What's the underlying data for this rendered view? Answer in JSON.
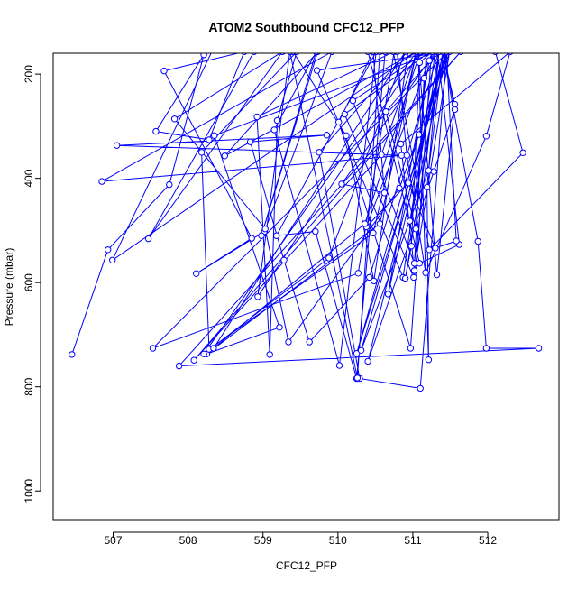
{
  "chart_data": {
    "type": "line",
    "title": "ATOM2 Southbound CFC12_PFP",
    "xlabel": "CFC12_PFP",
    "ylabel": "Pressure (mbar)",
    "xlim": [
      506.2,
      512.95
    ],
    "ylim": [
      1055,
      160
    ],
    "y_axis_inverted": true,
    "grid": false,
    "legend": "none",
    "x_ticks": [
      507,
      508,
      509,
      510,
      511,
      512
    ],
    "y_ticks": [
      200,
      400,
      600,
      800,
      1000
    ],
    "series": [
      {
        "color": "#0000FF",
        "marker": "open-circle",
        "points": [
          [
            506.45,
            738
          ],
          [
            506.93,
            537
          ],
          [
            507.75,
            412
          ],
          [
            508.21,
            163
          ],
          [
            507.57,
            310
          ],
          [
            508.28,
            326
          ],
          [
            508.75,
            157
          ],
          [
            507.68,
            194
          ],
          [
            508.85,
            515
          ],
          [
            508.11,
            583
          ],
          [
            509.02,
            502
          ],
          [
            509.92,
            157
          ],
          [
            506.85,
            406
          ],
          [
            510.85,
            356
          ],
          [
            507.05,
            337
          ],
          [
            509.85,
            317
          ],
          [
            508.83,
            330
          ],
          [
            509.28,
            557
          ],
          [
            509.62,
            714
          ],
          [
            510.42,
            590
          ],
          [
            511.35,
            155
          ],
          [
            508.35,
            318
          ],
          [
            509.22,
            686
          ],
          [
            508.25,
            737
          ],
          [
            510.56,
            487
          ],
          [
            511.05,
            157
          ],
          [
            506.99,
            557
          ],
          [
            508.32,
            156
          ],
          [
            508.88,
            157
          ],
          [
            507.47,
            516
          ],
          [
            509.26,
            157
          ],
          [
            507.82,
            286
          ],
          [
            509.03,
            497
          ],
          [
            509.34,
            714
          ],
          [
            510.82,
            419
          ],
          [
            511.48,
            155
          ],
          [
            507.53,
            726
          ],
          [
            510.27,
            582
          ],
          [
            510.75,
            157
          ],
          [
            508.92,
            282
          ],
          [
            509.09,
            738
          ],
          [
            509.19,
            289
          ],
          [
            509.45,
            157
          ],
          [
            508.18,
            350
          ],
          [
            508.28,
            728
          ],
          [
            510.47,
            505
          ],
          [
            511.05,
            157
          ],
          [
            508.49,
            357
          ],
          [
            509.73,
            157
          ],
          [
            508.98,
            510
          ],
          [
            509.71,
            157
          ],
          [
            509.15,
            307
          ],
          [
            510.02,
            759
          ],
          [
            510.51,
            157
          ],
          [
            509.18,
            510
          ],
          [
            509.7,
            502
          ],
          [
            510.25,
            784
          ],
          [
            510.63,
            157
          ],
          [
            509.4,
            157
          ],
          [
            510.11,
            318
          ],
          [
            510.48,
            597
          ],
          [
            510.94,
            155
          ],
          [
            509.75,
            350
          ],
          [
            510.29,
            784
          ],
          [
            511.1,
            803
          ],
          [
            511.45,
            157
          ],
          [
            509.72,
            193
          ],
          [
            510.87,
            590
          ],
          [
            511.3,
            157
          ],
          [
            510.05,
            411
          ],
          [
            510.62,
            428
          ],
          [
            510.47,
            157
          ],
          [
            510.01,
            292
          ],
          [
            510.97,
            726
          ],
          [
            511.25,
            155
          ],
          [
            510.09,
            277
          ],
          [
            511.01,
            590
          ],
          [
            511.18,
            157
          ],
          [
            510.2,
            251
          ],
          [
            511.02,
            563
          ],
          [
            511.35,
            157
          ],
          [
            510.4,
            157
          ],
          [
            511.09,
            563
          ],
          [
            511.62,
            527
          ],
          [
            511.33,
            157
          ],
          [
            510.64,
            272
          ],
          [
            511.04,
            497
          ],
          [
            511.15,
            208
          ],
          [
            511.32,
            157
          ],
          [
            510.74,
            157
          ],
          [
            511.22,
            537
          ],
          [
            512.47,
            351
          ],
          [
            512.1,
            157
          ],
          [
            510.79,
            157
          ],
          [
            510.92,
            356
          ],
          [
            511.17,
            581
          ],
          [
            511.98,
            319
          ],
          [
            512.3,
            157
          ],
          [
            510.84,
            334
          ],
          [
            511.02,
            577
          ],
          [
            511.49,
            157
          ],
          [
            510.25,
            736
          ],
          [
            511.08,
            316
          ],
          [
            511.45,
            157
          ],
          [
            510.31,
            730
          ],
          [
            511.21,
            385
          ],
          [
            511.41,
            157
          ],
          [
            510.4,
            751
          ],
          [
            511.28,
            387
          ],
          [
            511.56,
            268
          ],
          [
            511.41,
            157
          ],
          [
            510.67,
            622
          ],
          [
            511.22,
            174
          ],
          [
            511.4,
            157
          ],
          [
            510.9,
            592
          ],
          [
            510.98,
            530
          ],
          [
            511.09,
            178
          ],
          [
            511.26,
            157
          ],
          [
            510.38,
            493
          ],
          [
            510.94,
            409
          ],
          [
            511.3,
            534
          ],
          [
            511.58,
            520
          ],
          [
            511.45,
            157
          ],
          [
            510.96,
            482
          ],
          [
            511.35,
            157
          ],
          [
            511.19,
            417
          ],
          [
            511.21,
            748
          ],
          [
            511.07,
            157
          ],
          [
            511.32,
            585
          ],
          [
            511.56,
            258
          ],
          [
            511.4,
            157
          ],
          [
            511.87,
            521
          ],
          [
            511.98,
            726
          ],
          [
            512.68,
            726
          ],
          [
            507.88,
            760
          ],
          [
            511.64,
            157
          ],
          [
            508.08,
            749
          ],
          [
            510.58,
            355
          ],
          [
            511.05,
            157
          ],
          [
            508.21,
            737
          ],
          [
            509.88,
            553
          ],
          [
            510.9,
            157
          ],
          [
            508.34,
            726
          ],
          [
            510.36,
            487
          ],
          [
            511.1,
            157
          ],
          [
            508.93,
            627
          ],
          [
            509.36,
            157
          ],
          [
            510.26,
            783
          ],
          [
            510.56,
            157
          ]
        ]
      }
    ]
  }
}
